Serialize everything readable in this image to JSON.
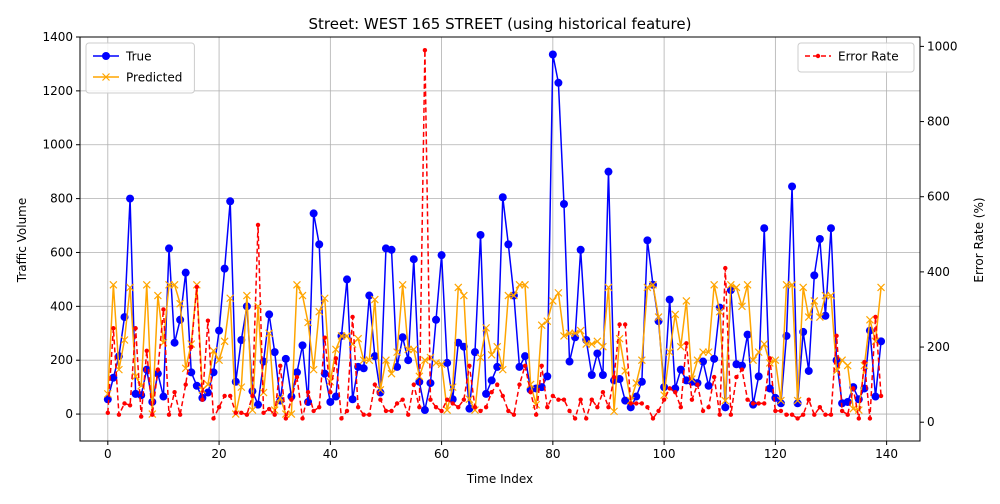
{
  "chart_data": {
    "type": "line",
    "title": "Street: WEST 165 STREET (using historical feature)",
    "xlabel": "Time Index",
    "ylabel": "Traffic Volume",
    "y2label": "Error Rate (%)",
    "xlim": [
      -5,
      146
    ],
    "ylim": [
      -100,
      1400
    ],
    "y2lim": [
      -50,
      1025
    ],
    "xticks": [
      0,
      20,
      40,
      60,
      80,
      100,
      120,
      140
    ],
    "yticks": [
      0,
      200,
      400,
      600,
      800,
      1000,
      1200,
      1400
    ],
    "y2ticks": [
      0,
      200,
      400,
      600,
      800,
      1000
    ],
    "grid": true,
    "legend_left_position": "upper-left",
    "legend_right_position": "upper-right",
    "x": [
      0,
      1,
      2,
      3,
      4,
      5,
      6,
      7,
      8,
      9,
      10,
      11,
      12,
      13,
      14,
      15,
      16,
      17,
      18,
      19,
      20,
      21,
      22,
      23,
      24,
      25,
      26,
      27,
      28,
      29,
      30,
      31,
      32,
      33,
      34,
      35,
      36,
      37,
      38,
      39,
      40,
      41,
      42,
      43,
      44,
      45,
      46,
      47,
      48,
      49,
      50,
      51,
      52,
      53,
      54,
      55,
      56,
      57,
      58,
      59,
      60,
      61,
      62,
      63,
      64,
      65,
      66,
      67,
      68,
      69,
      70,
      71,
      72,
      73,
      74,
      75,
      76,
      77,
      78,
      79,
      80,
      81,
      82,
      83,
      84,
      85,
      86,
      87,
      88,
      89,
      90,
      91,
      92,
      93,
      94,
      95,
      96,
      97,
      98,
      99,
      100,
      101,
      102,
      103,
      104,
      105,
      106,
      107,
      108,
      109,
      110,
      111,
      112,
      113,
      114,
      115,
      116,
      117,
      118,
      119,
      120,
      121,
      122,
      123,
      124,
      125,
      126,
      127,
      128,
      129,
      130,
      131,
      132,
      133,
      134,
      135,
      136,
      137,
      138,
      139
    ],
    "series": [
      {
        "name": "True",
        "color": "#0000ff",
        "axis": "left",
        "style": "solid",
        "marker": "circle",
        "values": [
          55,
          135,
          215,
          360,
          800,
          75,
          70,
          165,
          45,
          150,
          65,
          615,
          265,
          350,
          525,
          155,
          105,
          60,
          80,
          155,
          310,
          540,
          790,
          120,
          275,
          400,
          85,
          35,
          195,
          370,
          230,
          50,
          205,
          65,
          155,
          255,
          45,
          745,
          630,
          150,
          45,
          65,
          290,
          500,
          55,
          175,
          170,
          440,
          215,
          80,
          615,
          610,
          175,
          285,
          200,
          575,
          120,
          15,
          115,
          350,
          590,
          190,
          55,
          265,
          250,
          20,
          230,
          665,
          75,
          125,
          175,
          805,
          630,
          440,
          175,
          215,
          90,
          95,
          100,
          140,
          1335,
          1230,
          780,
          195,
          285,
          610,
          275,
          145,
          225,
          145,
          900,
          125,
          130,
          50,
          25,
          65,
          120,
          645,
          480,
          345,
          100,
          425,
          95,
          165,
          125,
          120,
          115,
          195,
          105,
          205,
          395,
          25,
          460,
          185,
          180,
          295,
          35,
          140,
          690,
          95,
          60,
          40,
          290,
          845,
          40,
          305,
          160,
          515,
          650,
          365,
          690,
          200,
          40,
          45,
          100,
          55,
          95,
          310,
          65,
          270
        ]
      },
      {
        "name": "Predicted",
        "color": "#ffa500",
        "axis": "left",
        "style": "solid",
        "marker": "x",
        "values": [
          75,
          480,
          165,
          275,
          470,
          140,
          105,
          480,
          0,
          440,
          265,
          480,
          480,
          410,
          170,
          260,
          480,
          90,
          110,
          235,
          200,
          270,
          430,
          0,
          100,
          440,
          15,
          400,
          80,
          300,
          15,
          60,
          0,
          0,
          480,
          440,
          340,
          165,
          380,
          430,
          120,
          240,
          290,
          290,
          260,
          280,
          200,
          200,
          425,
          90,
          200,
          150,
          230,
          480,
          240,
          240,
          140,
          200,
          210,
          190,
          185,
          15,
          100,
          470,
          440,
          55,
          15,
          210,
          320,
          220,
          250,
          165,
          440,
          440,
          480,
          480,
          110,
          35,
          330,
          345,
          420,
          450,
          290,
          300,
          300,
          310,
          260,
          260,
          270,
          250,
          470,
          10,
          280,
          160,
          50,
          115,
          200,
          470,
          480,
          360,
          70,
          230,
          370,
          250,
          420,
          130,
          200,
          230,
          230,
          480,
          380,
          50,
          480,
          470,
          400,
          480,
          200,
          230,
          260,
          190,
          200,
          50,
          480,
          480,
          50,
          470,
          360,
          420,
          360,
          440,
          440,
          160,
          200,
          180,
          20,
          15,
          180,
          350,
          270,
          470
        ]
      },
      {
        "name": "Error Rate",
        "color": "#ff0000",
        "axis": "right",
        "style": "dashed",
        "marker": "dot",
        "values": [
          25,
          250,
          20,
          50,
          45,
          250,
          15,
          190,
          20,
          140,
          300,
          20,
          80,
          20,
          100,
          200,
          360,
          60,
          270,
          10,
          40,
          70,
          70,
          25,
          25,
          20,
          70,
          525,
          25,
          35,
          20,
          150,
          10,
          60,
          120,
          10,
          80,
          30,
          40,
          225,
          80,
          170,
          10,
          30,
          280,
          40,
          20,
          20,
          100,
          60,
          30,
          30,
          50,
          60,
          20,
          100,
          40,
          990,
          60,
          40,
          30,
          60,
          50,
          40,
          60,
          150,
          40,
          30,
          40,
          80,
          100,
          70,
          30,
          20,
          100,
          150,
          80,
          20,
          150,
          40,
          70,
          60,
          60,
          30,
          10,
          60,
          10,
          60,
          40,
          80,
          40,
          120,
          260,
          260,
          50,
          50,
          50,
          40,
          10,
          30,
          60,
          90,
          80,
          40,
          210,
          60,
          100,
          30,
          40,
          120,
          20,
          410,
          20,
          120,
          140,
          60,
          50,
          50,
          50,
          170,
          30,
          30,
          20,
          20,
          10,
          20,
          60,
          20,
          40,
          20,
          20,
          230,
          30,
          20,
          90,
          10,
          160,
          10,
          280,
          70
        ]
      }
    ]
  }
}
